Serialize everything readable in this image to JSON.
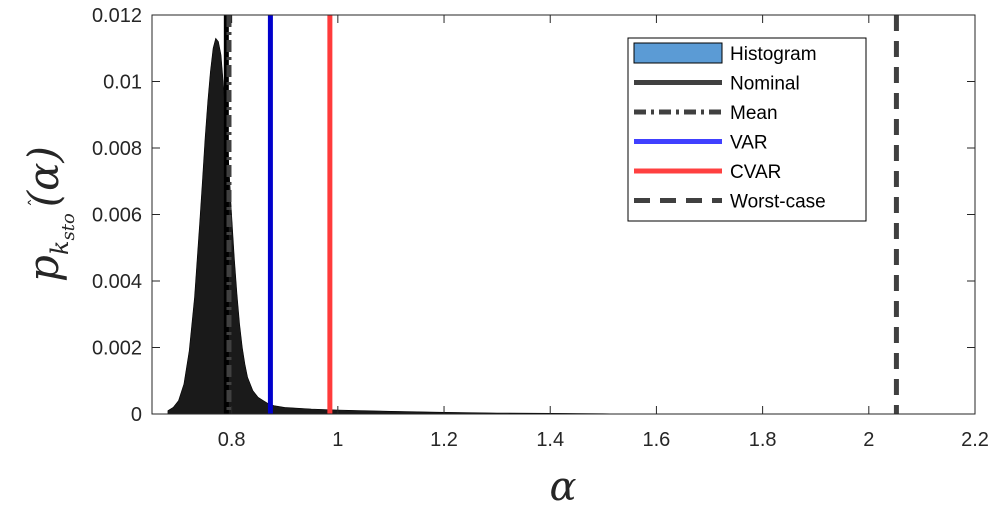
{
  "chart_data": {
    "type": "histogram",
    "xlabel": "α",
    "ylabel": {
      "base": "p",
      "hat": "k",
      "sub": "sto",
      "arg": "(α)"
    },
    "xlim": [
      0.65,
      2.2
    ],
    "ylim": [
      0,
      0.012
    ],
    "xticks": [
      0.8,
      1,
      1.2,
      1.4,
      1.6,
      1.8,
      2,
      2.2
    ],
    "xtick_labels": [
      "0.8",
      "1",
      "1.2",
      "1.4",
      "1.6",
      "1.8",
      "2",
      "2.2"
    ],
    "yticks": [
      0,
      0.002,
      0.004,
      0.006,
      0.008,
      0.01,
      0.012
    ],
    "ytick_labels": [
      "0",
      "0.002",
      "0.004",
      "0.006",
      "0.008",
      "0.01",
      "0.012"
    ],
    "grid": false,
    "legend_position": "top-right",
    "histogram": {
      "x": [
        0.68,
        0.69,
        0.7,
        0.71,
        0.72,
        0.73,
        0.74,
        0.745,
        0.75,
        0.755,
        0.76,
        0.765,
        0.77,
        0.775,
        0.78,
        0.785,
        0.79,
        0.795,
        0.8,
        0.805,
        0.81,
        0.815,
        0.82,
        0.825,
        0.83,
        0.84,
        0.85,
        0.86,
        0.87,
        0.88,
        0.9,
        0.95,
        1.0,
        1.05,
        1.1,
        1.2,
        1.3,
        1.4,
        1.5,
        1.54
      ],
      "y": [
        0.0001,
        0.0002,
        0.0004,
        0.0009,
        0.0019,
        0.0035,
        0.0058,
        0.007,
        0.0083,
        0.0094,
        0.0103,
        0.011,
        0.0113,
        0.0112,
        0.0108,
        0.0098,
        0.0087,
        0.0074,
        0.006,
        0.0047,
        0.0036,
        0.0027,
        0.002,
        0.0015,
        0.0011,
        0.0007,
        0.0005,
        0.0004,
        0.0003,
        0.00025,
        0.0002,
        0.00015,
        0.00012,
        0.0001,
        8e-05,
        5e-05,
        3e-05,
        2e-05,
        1e-05,
        0.0
      ]
    },
    "vlines": [
      {
        "name": "Nominal",
        "x": 0.79,
        "color": "#000000",
        "style": "solid"
      },
      {
        "name": "Mean",
        "x": 0.795,
        "color": "#404040",
        "style": "dashdot"
      },
      {
        "name": "VAR",
        "x": 0.873,
        "color": "#0000cc",
        "style": "solid"
      },
      {
        "name": "CVAR",
        "x": 0.985,
        "color": "#ff3b3b",
        "style": "solid"
      },
      {
        "name": "Worst-case",
        "x": 2.052,
        "color": "#404040",
        "style": "dashed"
      }
    ],
    "legend": [
      {
        "label": "Histogram",
        "kind": "patch",
        "color": "#5b9bd5"
      },
      {
        "label": "Nominal",
        "kind": "line",
        "color": "#404040",
        "style": "solid"
      },
      {
        "label": "Mean",
        "kind": "line",
        "color": "#404040",
        "style": "dashdot"
      },
      {
        "label": "VAR",
        "kind": "line",
        "color": "#4040ff",
        "style": "solid"
      },
      {
        "label": "CVAR",
        "kind": "line",
        "color": "#ff4040",
        "style": "solid"
      },
      {
        "label": "Worst-case",
        "kind": "line",
        "color": "#404040",
        "style": "dashed"
      }
    ]
  }
}
